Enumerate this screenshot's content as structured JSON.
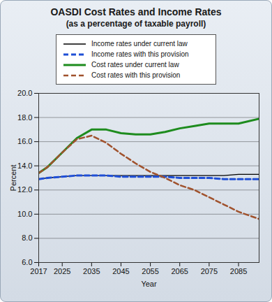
{
  "chart_data": {
    "type": "line",
    "title": "OASDI Cost Rates and Income Rates",
    "subtitle": "(as a percentage of taxable payroll)",
    "x_label": "Year",
    "y_label": "Percent",
    "x": [
      2017,
      2020,
      2025,
      2030,
      2035,
      2040,
      2045,
      2050,
      2055,
      2060,
      2065,
      2070,
      2075,
      2080,
      2085,
      2092
    ],
    "series": [
      {
        "name": "Income rates under current law",
        "color": "#000000",
        "line_style": "solid",
        "values": [
          12.9,
          13.0,
          13.1,
          13.2,
          13.2,
          13.2,
          13.2,
          13.2,
          13.2,
          13.2,
          13.2,
          13.2,
          13.2,
          13.2,
          13.3,
          13.3
        ]
      },
      {
        "name": "Income rates with this provision",
        "color": "#1f4fd6",
        "line_style": "dashed",
        "values": [
          12.9,
          13.0,
          13.1,
          13.2,
          13.2,
          13.2,
          13.1,
          13.1,
          13.1,
          13.1,
          13.0,
          13.0,
          13.0,
          12.9,
          12.9,
          12.9
        ]
      },
      {
        "name": "Cost rates under current law",
        "color": "#1e8c1e",
        "line_style": "solid",
        "values": [
          13.4,
          13.9,
          15.1,
          16.3,
          17.0,
          17.0,
          16.7,
          16.6,
          16.6,
          16.8,
          17.1,
          17.3,
          17.5,
          17.5,
          17.5,
          17.9
        ]
      },
      {
        "name": "Cost rates with this provision",
        "color": "#a0522d",
        "line_style": "dashed",
        "values": [
          13.4,
          13.9,
          15.1,
          16.2,
          16.5,
          15.9,
          15.0,
          14.2,
          13.5,
          13.0,
          12.4,
          12.0,
          11.4,
          10.8,
          10.2,
          9.6
        ]
      }
    ],
    "xlim": [
      2017,
      2092
    ],
    "xticks": [
      2017,
      2025,
      2035,
      2045,
      2055,
      2065,
      2075,
      2085
    ],
    "ylim": [
      6,
      20
    ],
    "yticks": [
      {
        "value": 6,
        "label": "6.0"
      },
      {
        "value": 8,
        "label": "8.0"
      },
      {
        "value": 10,
        "label": "10.0"
      },
      {
        "value": 12,
        "label": "12.0"
      },
      {
        "value": 14,
        "label": "14.0"
      },
      {
        "value": 16,
        "label": "16.0"
      },
      {
        "value": 18,
        "label": "18.0"
      },
      {
        "value": 20,
        "label": "20.0"
      }
    ],
    "grid": true,
    "legend": "top"
  }
}
